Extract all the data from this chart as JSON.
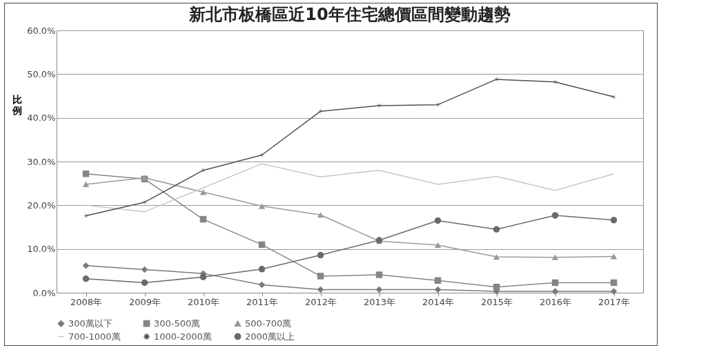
{
  "chart_data": {
    "type": "line",
    "title": "新北市板橋區近10年住宅總價區間變動趨勢",
    "ylabel": "比例",
    "categories": [
      "2008年",
      "2009年",
      "2010年",
      "2011年",
      "2012年",
      "2013年",
      "2014年",
      "2015年",
      "2016年",
      "2017年"
    ],
    "series": [
      {
        "name": "300萬以下",
        "color": "#7a7a7a",
        "marker": "diamond",
        "values": [
          6.2,
          5.3,
          4.4,
          1.8,
          0.7,
          0.7,
          0.7,
          0.3,
          0.3,
          0.3
        ]
      },
      {
        "name": "300-500萬",
        "color": "#858585",
        "marker": "square",
        "values": [
          27.2,
          26.0,
          16.8,
          11.0,
          3.8,
          4.1,
          2.8,
          1.3,
          2.3,
          2.3
        ]
      },
      {
        "name": "500-700萬",
        "color": "#9a9a9a",
        "marker": "triangle",
        "values": [
          24.8,
          26.3,
          23.0,
          19.8,
          17.8,
          11.8,
          10.9,
          8.2,
          8.1,
          8.3
        ]
      },
      {
        "name": "700-1000萬",
        "color": "#c8c8c8",
        "marker": "none",
        "values": [
          20.0,
          18.5,
          24.0,
          29.5,
          26.5,
          28.0,
          24.8,
          26.6,
          23.4,
          27.2
        ]
      },
      {
        "name": "1000-2000萬",
        "color": "#505050",
        "marker": "star",
        "values": [
          17.6,
          20.7,
          28.0,
          31.5,
          41.5,
          42.8,
          43.0,
          48.8,
          48.2,
          44.8
        ]
      },
      {
        "name": "2000萬以上",
        "color": "#6a6a6a",
        "marker": "circle",
        "values": [
          3.2,
          2.3,
          3.6,
          5.4,
          8.6,
          12.0,
          16.5,
          14.5,
          17.7,
          16.6
        ]
      }
    ],
    "ylim": [
      0,
      60
    ],
    "yticks": [
      {
        "value": 0,
        "label": "0.0%"
      },
      {
        "value": 10,
        "label": "10.0%"
      },
      {
        "value": 20,
        "label": "20.0%"
      },
      {
        "value": 30,
        "label": "30.0%"
      },
      {
        "value": 40,
        "label": "40.0%"
      },
      {
        "value": 50,
        "label": "50.0%"
      },
      {
        "value": 60,
        "label": "60.0%"
      }
    ],
    "grid": "y",
    "legend": "bottom",
    "line_style": "solid"
  }
}
